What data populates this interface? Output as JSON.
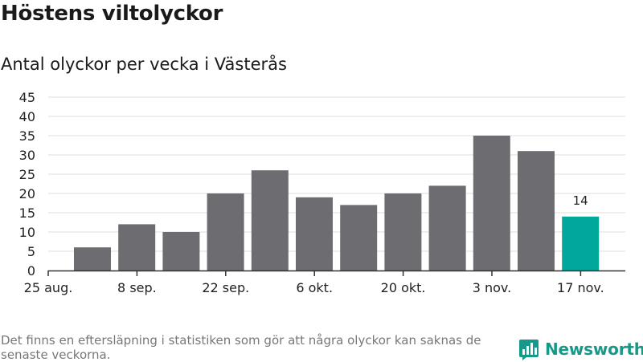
{
  "title": "Höstens viltolyckor",
  "subtitle": "Antal olyckor per vecka i Västerås",
  "footnote": "Det finns en eftersläpning i statistiken som gör att några olyckor kan saknas de senaste veckorna.",
  "brand": {
    "name": "Newsworthy",
    "icon": "bar-chart-logo-icon",
    "color": "#17998a"
  },
  "chart_data": {
    "type": "bar",
    "values": [
      6,
      12,
      10,
      20,
      26,
      19,
      17,
      20,
      22,
      35,
      31,
      14
    ],
    "x_tick_labels": [
      "25 aug.",
      "8 sep.",
      "22 sep.",
      "6 okt.",
      "20 okt.",
      "3 nov.",
      "17 nov."
    ],
    "y_ticks": [
      0,
      5,
      10,
      15,
      20,
      25,
      30,
      35,
      40,
      45
    ],
    "ylim": [
      0,
      45
    ],
    "highlight_index": 11,
    "highlight_label": "14",
    "colors": {
      "bar": "#6d6c71",
      "highlight": "#00a79a",
      "grid": "#dddddd",
      "axis": "#333333"
    },
    "grid": true
  }
}
